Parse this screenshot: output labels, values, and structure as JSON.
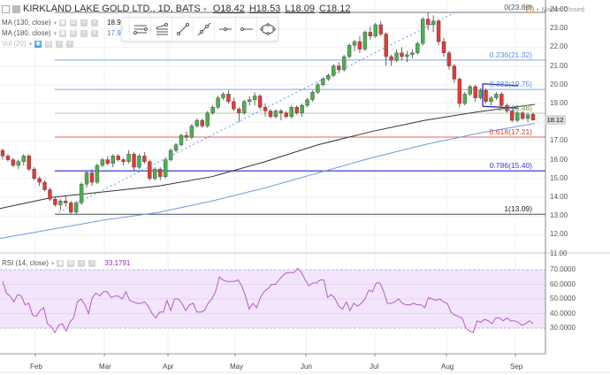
{
  "header": {
    "symbol": "KIRKLAND LAKE GOLD LTD., 1D, BATS",
    "open": "O18.42",
    "high": "H18.53",
    "low": "L18.09",
    "close": "C18.12",
    "market_status": "Market Closed"
  },
  "indicators": [
    {
      "label": "MA (130, close)",
      "value": "18.9361",
      "color": "#222222"
    },
    {
      "label": "MA (180, close)",
      "value": "17.9427",
      "color": "#4a7fd6"
    },
    {
      "label": "Vol (20)",
      "value": ""
    }
  ],
  "rsi_legend": {
    "label": "RSI (14, close)",
    "value": "33.1791",
    "color": "#9c27b0"
  },
  "toolbar": {
    "tools": [
      "horizontal-lines-tool-icon",
      "fib-retracement-tool-icon",
      "trend-line-tool-icon",
      "extended-line-tool-icon",
      "horizontal-ray-tool-icon",
      "ray-tool-icon",
      "ellipse-tool-icon"
    ]
  },
  "colors": {
    "up": "#4caf50",
    "down": "#e53935",
    "ma130": "#333333",
    "ma180": "#6a9be6",
    "rsi": "#b45cc9",
    "rsi_band": "#f3e5fb"
  },
  "current_price": "18.12",
  "chart_data": [
    {
      "type": "candlestick",
      "title": "KIRKLAND LAKE GOLD LTD., 1D, BATS",
      "xlabel": "",
      "ylabel": "Price",
      "ylim": [
        11.0,
        24.0
      ],
      "y_ticks": [
        "24.00",
        "23.00",
        "22.00",
        "21.00",
        "20.00",
        "19.00",
        "17.00",
        "16.00",
        "15.00",
        "14.00",
        "13.00",
        "12.00",
        "11.00"
      ],
      "x_ticks": [
        "Feb",
        "Mar",
        "Apr",
        "May",
        "Jun",
        "Jul",
        "Aug",
        "Sep"
      ],
      "grid": true,
      "fib_levels": [
        {
          "label": "0(23.86)",
          "ratio": 0,
          "price": 23.86,
          "color": "#555555"
        },
        {
          "label": "0.236(21.32)",
          "ratio": 0.236,
          "price": 21.32,
          "color": "#5b8fe0"
        },
        {
          "label": "0.382(19.75)",
          "ratio": 0.382,
          "price": 19.75,
          "color": "#5b8fe0"
        },
        {
          "label": "0.5(18.48)",
          "ratio": 0.5,
          "price": 18.48,
          "color": "#6a9a4a"
        },
        {
          "label": "0.618(17.21)",
          "ratio": 0.618,
          "price": 17.21,
          "color": "#e53935"
        },
        {
          "label": "0.786(15.40)",
          "ratio": 0.786,
          "price": 15.4,
          "color": "#3b3bdc"
        },
        {
          "label": "1(13.09)",
          "ratio": 1,
          "price": 13.09,
          "color": "#222222"
        }
      ],
      "series": [
        {
          "name": "MA (130, close)",
          "last": 18.9361,
          "path": [
            [
              0,
              13.4
            ],
            [
              60,
              14.0
            ],
            [
              120,
              14.3
            ],
            [
              180,
              14.6
            ],
            [
              240,
              15.1
            ],
            [
              300,
              15.9
            ],
            [
              360,
              16.8
            ],
            [
              420,
              17.5
            ],
            [
              480,
              18.1
            ],
            [
              540,
              18.55
            ],
            [
              605,
              18.95
            ]
          ]
        },
        {
          "name": "MA (180, close)",
          "last": 17.9427,
          "path": [
            [
              0,
              11.8
            ],
            [
              60,
              12.3
            ],
            [
              120,
              12.8
            ],
            [
              180,
              13.2
            ],
            [
              240,
              13.8
            ],
            [
              300,
              14.5
            ],
            [
              360,
              15.3
            ],
            [
              420,
              16.1
            ],
            [
              480,
              16.8
            ],
            [
              540,
              17.4
            ],
            [
              605,
              17.94
            ]
          ]
        }
      ],
      "candles": [
        [
          16.5,
          16.6,
          16.0,
          16.2
        ],
        [
          16.2,
          16.3,
          15.9,
          16.0
        ],
        [
          16.0,
          16.1,
          15.6,
          15.7
        ],
        [
          15.7,
          16.0,
          15.5,
          15.9
        ],
        [
          15.9,
          16.3,
          15.7,
          16.2
        ],
        [
          16.2,
          16.3,
          15.4,
          15.5
        ],
        [
          15.5,
          15.6,
          14.9,
          15.0
        ],
        [
          15.0,
          15.1,
          14.6,
          14.8
        ],
        [
          14.8,
          14.9,
          14.3,
          14.4
        ],
        [
          14.4,
          14.5,
          13.8,
          13.9
        ],
        [
          13.9,
          14.0,
          13.5,
          13.6
        ],
        [
          13.6,
          13.9,
          13.3,
          13.8
        ],
        [
          13.8,
          14.1,
          13.5,
          13.7
        ],
        [
          13.7,
          13.8,
          13.1,
          13.2
        ],
        [
          13.2,
          13.8,
          13.1,
          13.7
        ],
        [
          13.7,
          14.8,
          13.6,
          14.7
        ],
        [
          14.7,
          15.4,
          14.5,
          15.3
        ],
        [
          15.3,
          15.5,
          14.6,
          14.8
        ],
        [
          14.8,
          15.8,
          14.7,
          15.7
        ],
        [
          15.7,
          16.1,
          15.6,
          16.0
        ],
        [
          16.0,
          16.2,
          15.7,
          15.8
        ],
        [
          15.8,
          16.3,
          15.6,
          16.2
        ],
        [
          16.2,
          16.3,
          15.9,
          16.0
        ],
        [
          16.0,
          16.1,
          15.7,
          15.9
        ],
        [
          15.9,
          16.5,
          15.8,
          16.3
        ],
        [
          16.3,
          16.4,
          15.4,
          15.6
        ],
        [
          15.6,
          16.3,
          15.5,
          16.2
        ],
        [
          16.2,
          16.4,
          15.8,
          15.9
        ],
        [
          15.9,
          16.0,
          14.9,
          15.0
        ],
        [
          15.0,
          15.6,
          14.9,
          15.5
        ],
        [
          15.5,
          15.6,
          14.9,
          15.1
        ],
        [
          15.1,
          16.1,
          15.0,
          16.0
        ],
        [
          16.0,
          16.6,
          15.9,
          16.5
        ],
        [
          16.5,
          16.9,
          16.4,
          16.8
        ],
        [
          16.8,
          17.4,
          16.7,
          17.3
        ],
        [
          17.3,
          17.5,
          17.0,
          17.2
        ],
        [
          17.2,
          17.9,
          17.1,
          17.8
        ],
        [
          17.8,
          18.2,
          17.7,
          18.1
        ],
        [
          18.1,
          18.2,
          17.7,
          17.8
        ],
        [
          17.8,
          18.6,
          17.7,
          18.5
        ],
        [
          18.5,
          18.9,
          18.4,
          18.8
        ],
        [
          18.8,
          19.4,
          18.7,
          19.3
        ],
        [
          19.3,
          19.6,
          19.2,
          19.5
        ],
        [
          19.5,
          19.7,
          19.0,
          19.1
        ],
        [
          19.1,
          19.3,
          18.6,
          18.7
        ],
        [
          18.7,
          18.8,
          18.0,
          18.5
        ],
        [
          18.5,
          19.2,
          18.4,
          19.1
        ],
        [
          19.1,
          19.4,
          18.9,
          19.2
        ],
        [
          19.2,
          19.6,
          18.9,
          19.4
        ],
        [
          19.4,
          19.5,
          18.7,
          18.8
        ],
        [
          18.8,
          19.0,
          18.3,
          18.6
        ],
        [
          18.6,
          18.7,
          18.2,
          18.3
        ],
        [
          18.3,
          18.7,
          18.2,
          18.6
        ],
        [
          18.6,
          18.7,
          18.1,
          18.5
        ],
        [
          18.5,
          18.6,
          18.2,
          18.3
        ],
        [
          18.3,
          18.9,
          18.2,
          18.8
        ],
        [
          18.8,
          18.9,
          18.4,
          18.5
        ],
        [
          18.5,
          19.0,
          18.3,
          18.9
        ],
        [
          18.9,
          19.3,
          18.8,
          19.2
        ],
        [
          19.2,
          19.7,
          19.1,
          19.6
        ],
        [
          19.6,
          20.1,
          19.5,
          20.0
        ],
        [
          20.0,
          20.4,
          19.9,
          20.3
        ],
        [
          20.3,
          20.6,
          20.2,
          20.5
        ],
        [
          20.5,
          21.1,
          20.4,
          21.0
        ],
        [
          21.0,
          21.2,
          20.6,
          20.8
        ],
        [
          20.8,
          21.6,
          20.7,
          21.5
        ],
        [
          21.5,
          22.2,
          21.4,
          22.1
        ],
        [
          22.1,
          22.4,
          21.8,
          22.3
        ],
        [
          22.3,
          22.6,
          21.7,
          21.9
        ],
        [
          21.9,
          22.9,
          21.8,
          22.8
        ],
        [
          22.8,
          23.1,
          22.4,
          22.6
        ],
        [
          22.6,
          23.3,
          22.5,
          23.2
        ],
        [
          23.2,
          23.4,
          22.6,
          22.7
        ],
        [
          22.7,
          22.8,
          21.0,
          21.5
        ],
        [
          21.5,
          21.6,
          21.0,
          21.3
        ],
        [
          21.3,
          21.9,
          21.2,
          21.7
        ],
        [
          21.7,
          22.0,
          21.3,
          21.5
        ],
        [
          21.5,
          21.8,
          21.2,
          21.6
        ],
        [
          21.6,
          21.9,
          21.4,
          21.7
        ],
        [
          21.7,
          22.3,
          21.6,
          22.2
        ],
        [
          22.2,
          23.6,
          22.1,
          23.5
        ],
        [
          23.5,
          23.86,
          22.9,
          23.2
        ],
        [
          23.2,
          23.7,
          22.8,
          23.4
        ],
        [
          23.4,
          23.5,
          22.1,
          22.3
        ],
        [
          22.3,
          22.5,
          21.5,
          21.7
        ],
        [
          21.7,
          21.8,
          20.8,
          21.0
        ],
        [
          21.0,
          21.1,
          20.1,
          20.3
        ],
        [
          20.3,
          20.4,
          18.8,
          19.0
        ],
        [
          19.0,
          19.6,
          18.9,
          19.5
        ],
        [
          19.5,
          20.0,
          19.4,
          19.9
        ],
        [
          19.9,
          20.0,
          19.1,
          19.3
        ],
        [
          19.3,
          19.8,
          19.2,
          19.7
        ],
        [
          19.7,
          19.8,
          19.0,
          19.1
        ],
        [
          19.1,
          19.4,
          18.9,
          19.3
        ],
        [
          19.3,
          19.6,
          19.2,
          19.5
        ],
        [
          19.5,
          19.6,
          18.8,
          18.9
        ],
        [
          18.9,
          19.0,
          18.5,
          18.6
        ],
        [
          18.6,
          18.7,
          18.0,
          18.1
        ],
        [
          18.1,
          18.6,
          18.0,
          18.5
        ],
        [
          18.5,
          18.6,
          18.1,
          18.2
        ],
        [
          18.2,
          18.5,
          18.0,
          18.4
        ],
        [
          18.42,
          18.53,
          18.09,
          18.12
        ]
      ]
    },
    {
      "type": "line",
      "title": "RSI (14, close)",
      "ylim": [
        27,
        77
      ],
      "y_ticks": [
        "70.0000",
        "60.0000",
        "50.0000",
        "40.0000",
        "30.0000"
      ],
      "bands": {
        "upper": 70,
        "lower": 30
      },
      "last": 33.1791,
      "values": [
        62,
        54,
        52,
        48,
        53,
        52,
        46,
        47,
        39,
        38,
        42,
        44,
        33,
        31,
        27,
        32,
        33,
        28,
        34,
        37,
        48,
        50,
        46,
        40,
        51,
        54,
        52,
        55,
        55,
        51,
        52,
        52,
        50,
        55,
        49,
        48,
        47,
        47,
        48,
        45,
        40,
        37,
        41,
        41,
        49,
        42,
        50,
        50,
        47,
        42,
        46,
        47,
        41,
        41,
        42,
        47,
        50,
        55,
        65,
        63,
        62,
        62,
        62,
        63,
        59,
        52,
        43,
        47,
        44,
        51,
        55,
        57,
        60,
        60,
        63,
        66,
        68,
        68,
        68,
        71,
        68,
        63,
        59,
        61,
        61,
        63,
        63,
        51,
        53,
        50,
        45,
        43,
        48,
        42,
        47,
        45,
        47,
        50,
        56,
        55,
        61,
        61,
        55,
        47,
        47,
        48,
        50,
        47,
        46,
        46,
        47,
        46,
        46,
        44,
        51,
        50,
        49,
        50,
        48,
        47,
        41,
        39,
        38,
        37,
        30,
        28,
        27,
        35,
        34,
        36,
        35,
        33,
        37,
        37,
        35,
        37,
        35,
        35,
        34,
        32,
        33,
        35,
        33
      ]
    }
  ]
}
